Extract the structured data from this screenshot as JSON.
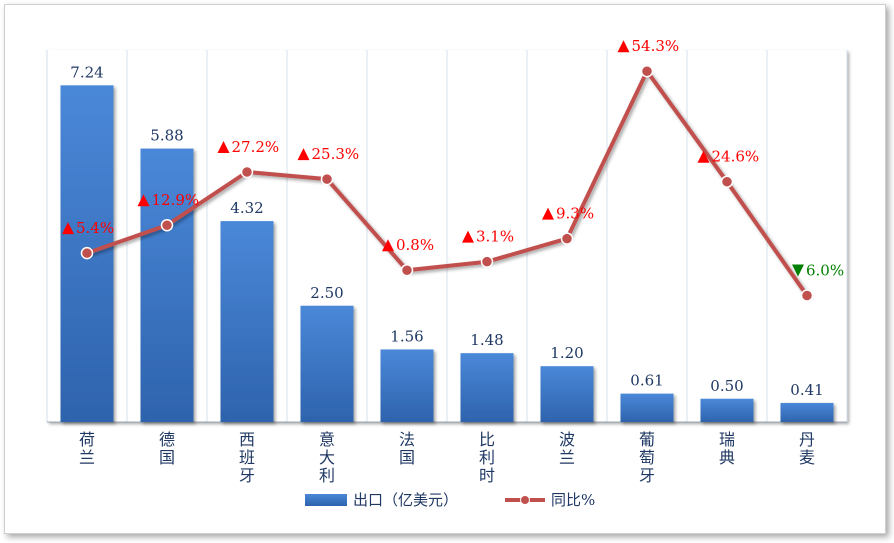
{
  "chart_data": {
    "type": "bar",
    "categories": [
      "荷兰",
      "德国",
      "西班牙",
      "意大利",
      "法国",
      "比利时",
      "波兰",
      "葡萄牙",
      "瑞典",
      "丹麦"
    ],
    "series": [
      {
        "name": "出口（亿美元）",
        "type": "bar",
        "values": [
          7.24,
          5.88,
          4.32,
          2.5,
          1.56,
          1.48,
          1.2,
          0.61,
          0.5,
          0.41
        ],
        "labels": [
          "7.24",
          "5.88",
          "4.32",
          "2.50",
          "1.56",
          "1.48",
          "1.20",
          "0.61",
          "0.50",
          "0.41"
        ]
      },
      {
        "name": "同比%",
        "type": "line",
        "values": [
          5.4,
          12.9,
          27.2,
          25.3,
          0.8,
          3.1,
          9.3,
          54.3,
          24.6,
          -6.0
        ],
        "labels": [
          "5.4%",
          "12.9%",
          "27.2%",
          "25.3%",
          "0.8%",
          "3.1%",
          "9.3%",
          "54.3%",
          "24.6%",
          "6.0%"
        ]
      }
    ],
    "bar_ylim": [
      0,
      8
    ],
    "line_ylim": [
      -40,
      60
    ],
    "grid": "vertical",
    "legend": "bottom",
    "title": "",
    "xlabel": "",
    "ylabel": "",
    "colors": {
      "bar": "#3a75c4",
      "bar_light": "#4a88d8",
      "line": "#c0504d",
      "up": "#ff0000",
      "down": "#008000",
      "bar_label": "#1f3864",
      "grid": "#d6e0ec"
    }
  }
}
